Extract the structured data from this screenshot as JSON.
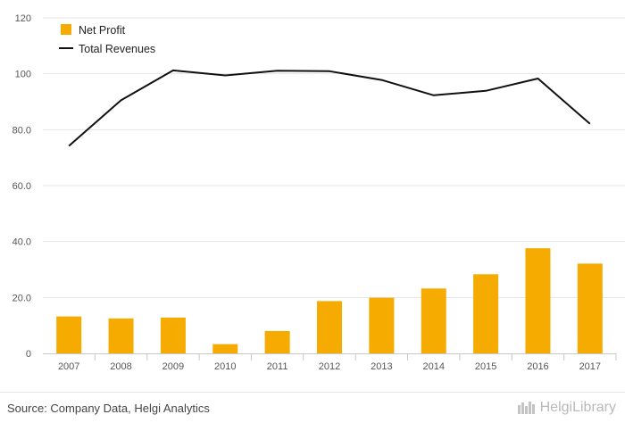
{
  "chart_data": {
    "type": "bar+line",
    "categories": [
      "2007",
      "2008",
      "2009",
      "2010",
      "2011",
      "2012",
      "2013",
      "2014",
      "2015",
      "2016",
      "2017"
    ],
    "series": [
      {
        "name": "Net Profit",
        "type": "bar",
        "color": "#f5ab00",
        "values": [
          13.2,
          12.5,
          12.8,
          3.3,
          8.0,
          18.7,
          19.9,
          23.2,
          28.3,
          37.6,
          32.1
        ]
      },
      {
        "name": "Total Revenues",
        "type": "line",
        "color": "#111111",
        "values": [
          74.2,
          90.5,
          101.2,
          99.4,
          101.1,
          100.9,
          97.8,
          92.3,
          93.9,
          98.3,
          82.1
        ]
      }
    ],
    "yticks": [
      "0",
      "20.0",
      "40.0",
      "60.0",
      "80.0",
      "100",
      "120"
    ],
    "ylim": [
      0,
      120
    ],
    "legend_position": "top-left",
    "grid": true
  },
  "footer": {
    "source": "Source: Company Data, Helgi Analytics",
    "logo_text": "HelgiLibrary"
  },
  "colors": {
    "bar": "#f5ab00",
    "line": "#111111",
    "grid": "#e6e6e6"
  },
  "icons": {
    "logo": "helgi-library-icon"
  }
}
